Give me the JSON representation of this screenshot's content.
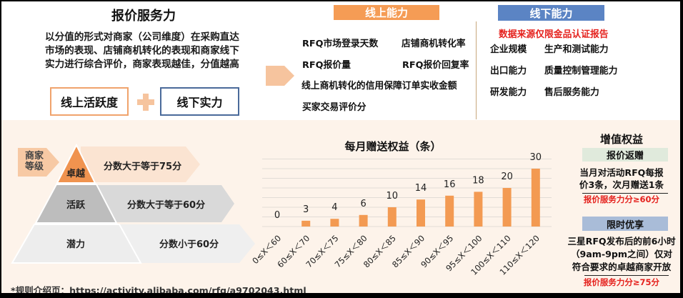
{
  "header": {
    "title": "报价服务力",
    "intro_lines": [
      "以分值的形式对商家（公司维度）在采购直达",
      "市场的表现、店铺商机转化的表现和商家线下",
      "实力进行综合评价，商家表现越佳，分值越高"
    ],
    "components": {
      "online": "线上活跃度",
      "offline": "线下实力",
      "plus_icon": "plus-icon",
      "arrow_icon": "arrow-right-icon"
    }
  },
  "online_capability": {
    "label": "线上能力",
    "items": [
      "RFQ市场登录天数",
      "店铺商机转化率",
      "RFQ报价量",
      "RFQ报价回复率",
      "线上商机转化的信用保障订单实收金额",
      "买家交易评价分"
    ]
  },
  "offline_capability": {
    "label": "线下能力",
    "note": "数据来源仅限金品认证报告",
    "items": [
      "企业规模",
      "生产和测试能力",
      "出口能力",
      "质量控制管理能力",
      "研发能力",
      "售后服务能力"
    ]
  },
  "merchant_levels": {
    "label_line1": "商家",
    "label_line2": "等级",
    "levels": [
      {
        "name": "卓越",
        "rule": "分数大于等于75分"
      },
      {
        "name": "活跃",
        "rule": "分数大于等于60分"
      },
      {
        "name": "潜力",
        "rule": "分数小于60分"
      }
    ]
  },
  "colors": {
    "accent_orange": "#f39a52",
    "light_orange": "#f6c49e",
    "blue": "#5b84c4",
    "red": "#e5211d",
    "panel_bg": "#fdf3ea"
  },
  "chart_data": {
    "type": "bar",
    "title": "每月赠送权益（条）",
    "xlabel": "",
    "ylabel": "",
    "categories": [
      "0≤X＜60",
      "60≤X＜70",
      "70≤X＜75",
      "75≤X＜80",
      "80≤X＜85",
      "85≤X＜90",
      "90≤X＜95",
      "95≤X＜100",
      "100≤X＜110",
      "110≤X＜120"
    ],
    "values": [
      0,
      3,
      4,
      6,
      10,
      14,
      16,
      18,
      20,
      30
    ],
    "ylim": [
      0,
      35
    ],
    "grid": true,
    "legend": null,
    "data_labels": true,
    "bar_color": "#f39a52"
  },
  "benefits": {
    "title": "增值权益",
    "quote_rebate": {
      "label": "报价返赠",
      "lines": [
        "当月对活动RFQ每报",
        "价3条，次月赠送1条"
      ],
      "requirement": "报价服务力分≥60分"
    },
    "limited_time": {
      "label": "限时优享",
      "lines": [
        "三星RFQ发布后的前6小时",
        "（9am-9pm之间）仅对",
        "符合要求的卓越商家开放"
      ],
      "requirement": "报价服务力分≥75分"
    }
  },
  "footer": {
    "text": "*规则介绍页：https://activity.alibaba.com/rfq/a9702043.html"
  }
}
